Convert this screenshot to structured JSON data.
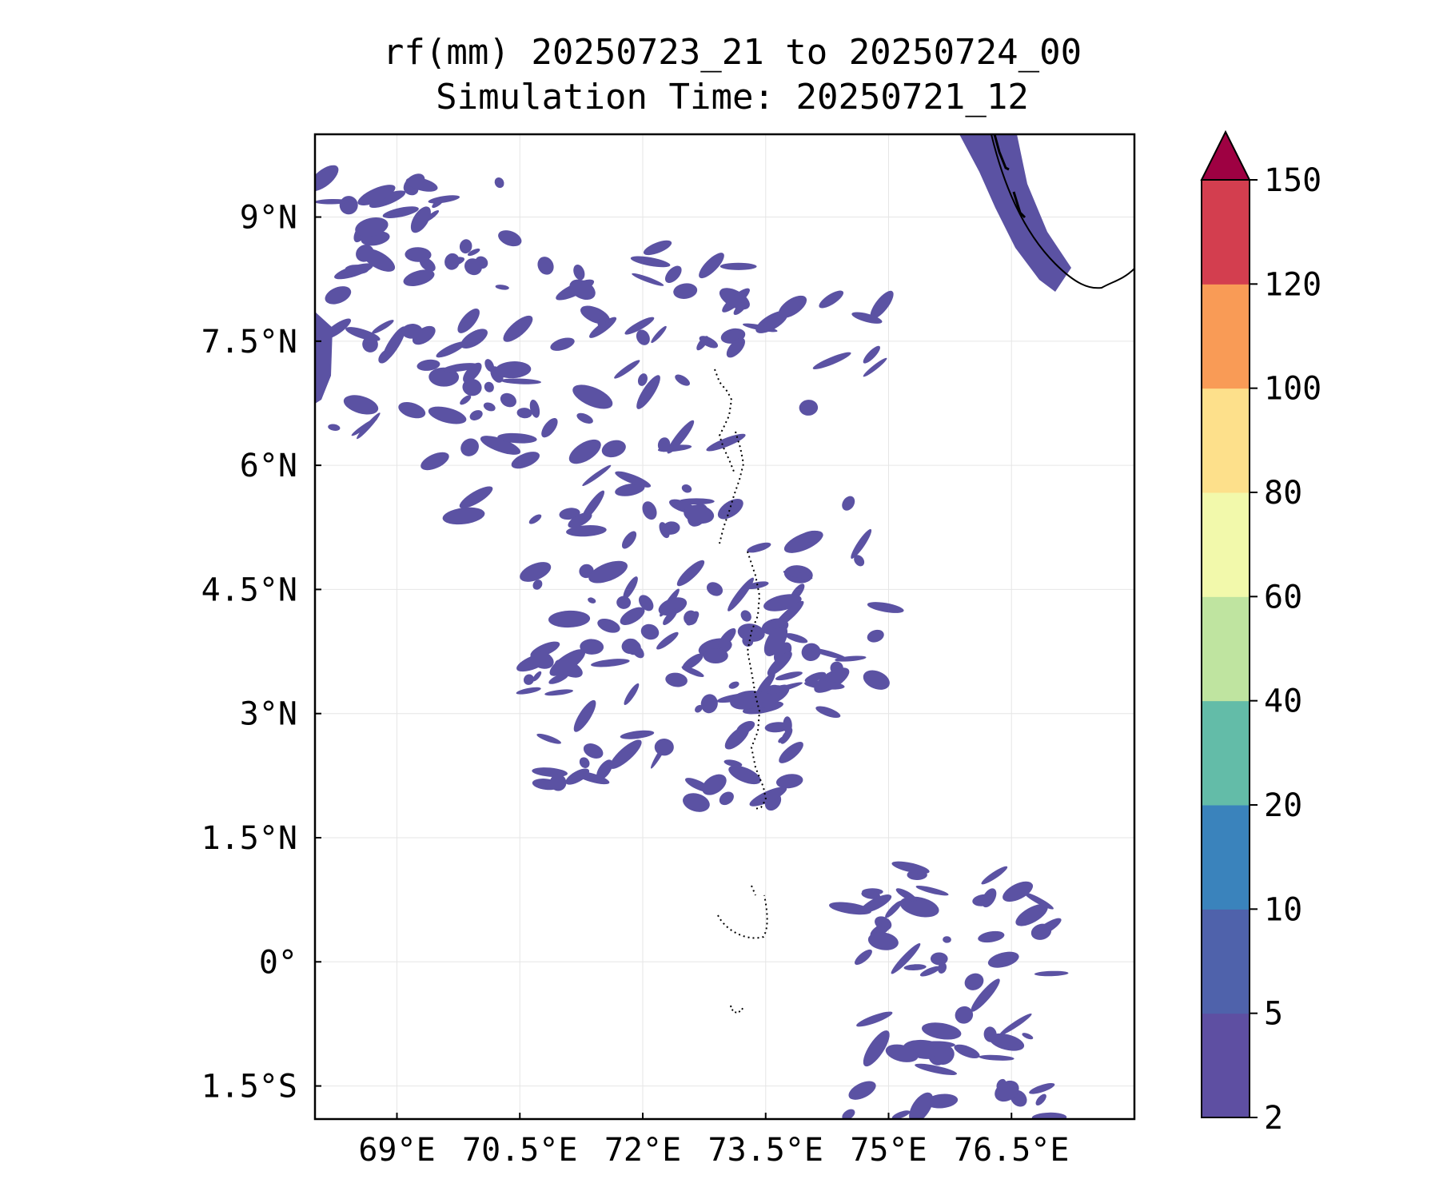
{
  "title": {
    "line1": "rf(mm) 20250723_21 to 20250724_00",
    "line2": "Simulation Time: 20250721_12"
  },
  "map": {
    "extent": {
      "lon": [
        68.0,
        78.0
      ],
      "lat": [
        -1.9,
        10.0
      ]
    },
    "lon_ticks": [
      {
        "value": 69.0,
        "label": "69°E"
      },
      {
        "value": 70.5,
        "label": "70.5°E"
      },
      {
        "value": 72.0,
        "label": "72°E"
      },
      {
        "value": 73.5,
        "label": "73.5°E"
      },
      {
        "value": 75.0,
        "label": "75°E"
      },
      {
        "value": 76.5,
        "label": "76.5°E"
      }
    ],
    "lat_ticks": [
      {
        "value": 9.0,
        "label": "9°N"
      },
      {
        "value": 7.5,
        "label": "7.5°N"
      },
      {
        "value": 6.0,
        "label": "6°N"
      },
      {
        "value": 4.5,
        "label": "4.5°N"
      },
      {
        "value": 3.0,
        "label": "3°N"
      },
      {
        "value": 1.5,
        "label": "1.5°N"
      },
      {
        "value": 0.0,
        "label": "0°"
      },
      {
        "value": -1.5,
        "label": "1.5°S"
      }
    ],
    "gridlines": true,
    "land_color": "#000000",
    "rain_fill_color": "#5b52a3",
    "rain_clusters": [
      {
        "lon": [
          68.0,
          70.4
        ],
        "lat": [
          6.0,
          9.5
        ],
        "n": 60
      },
      {
        "lon": [
          69.8,
          73.2
        ],
        "lat": [
          5.0,
          8.8
        ],
        "n": 70
      },
      {
        "lon": [
          70.6,
          74.0
        ],
        "lat": [
          1.9,
          4.8
        ],
        "n": 90
      },
      {
        "lon": [
          73.0,
          75.0
        ],
        "lat": [
          3.0,
          8.2
        ],
        "n": 40
      },
      {
        "lon": [
          74.5,
          77.0
        ],
        "lat": [
          -1.9,
          1.2
        ],
        "n": 60
      }
    ]
  },
  "colorbar": {
    "levels": [
      {
        "label": "2",
        "color": "#5e4fa2"
      },
      {
        "label": "5",
        "color": "#4f62ab"
      },
      {
        "label": "10",
        "color": "#3a83bc"
      },
      {
        "label": "20",
        "color": "#63bca8"
      },
      {
        "label": "40",
        "color": "#bfe4a0"
      },
      {
        "label": "60",
        "color": "#f2f9ab"
      },
      {
        "label": "80",
        "color": "#fde08b"
      },
      {
        "label": "100",
        "color": "#f99b56"
      },
      {
        "label": "120",
        "color": "#d33e4f"
      },
      {
        "label": "150",
        "color": "#9e0142"
      }
    ],
    "extend": "max"
  }
}
